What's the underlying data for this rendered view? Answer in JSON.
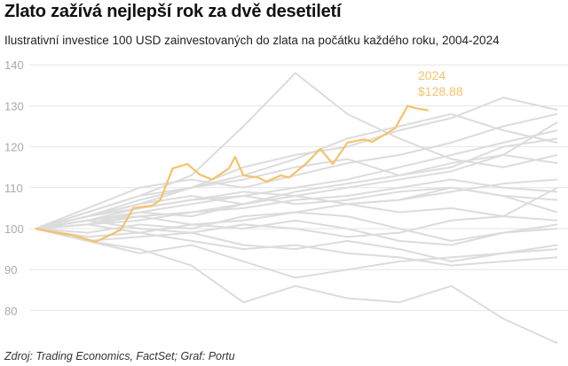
{
  "title": "Zlato zažívá nejlepší rok za dvě desetiletí",
  "subtitle": "Ilustrativní investice 100 USD zainvestovaných do zlata na počátku každého roku, 2004-2024",
  "source": "Zdroj: Trading Economics, FactSet; Graf: Portu",
  "colors": {
    "highlight": "#f5c26b",
    "background_series": "#dcdcdc",
    "grid": "#e6e6e6",
    "tick": "#aaaaaa"
  },
  "chart_data": {
    "type": "line",
    "title": "Zlato zažívá nejlepší rok za dvě desetiletí",
    "xlabel": "",
    "ylabel": "",
    "ylim": [
      70,
      142
    ],
    "yticks": [
      80,
      90,
      100,
      110,
      120,
      130,
      140
    ],
    "xlim": [
      0,
      251
    ],
    "grid": "horizontal",
    "legend": "none",
    "highlight": {
      "name": "2024",
      "value_label": "$128.88",
      "x": [
        0,
        10,
        17,
        29,
        41,
        47,
        56,
        60,
        66,
        73,
        79,
        85,
        93,
        96,
        100,
        107,
        111,
        118,
        122,
        130,
        137,
        143,
        150,
        158,
        162,
        173,
        179,
        183,
        189
      ],
      "y": [
        100,
        99,
        98.5,
        96.8,
        99.7,
        105,
        105.6,
        107,
        114.7,
        115.8,
        113.2,
        112,
        114.7,
        117.5,
        113,
        112.5,
        111.5,
        113,
        112.5,
        115.8,
        119.5,
        115.8,
        121,
        121.8,
        121.2,
        124.5,
        130,
        129.4,
        128.88
      ]
    },
    "background_series_x": [
      0,
      25,
      50,
      75,
      100,
      125,
      150,
      175,
      200,
      225,
      251
    ],
    "background_series": [
      [
        100,
        104,
        108,
        113,
        125,
        138,
        128,
        122,
        117,
        115,
        118
      ],
      [
        100,
        97,
        94,
        96,
        92,
        88,
        90,
        92,
        93,
        94,
        95
      ],
      [
        100,
        97,
        95,
        91,
        82,
        86,
        83,
        82,
        86,
        78,
        72
      ],
      [
        100,
        103,
        107,
        110,
        115,
        118,
        120,
        124,
        127,
        132,
        129
      ],
      [
        100,
        105,
        110,
        112,
        110,
        113,
        116,
        118,
        121,
        125,
        128
      ],
      [
        100,
        102,
        105,
        107,
        108,
        110,
        112,
        115,
        118,
        121,
        124
      ],
      [
        100,
        103,
        106,
        108,
        106,
        109,
        111,
        113,
        115,
        120,
        122
      ],
      [
        100,
        101,
        103,
        104,
        106,
        108,
        110,
        112,
        114,
        118,
        116
      ],
      [
        100,
        102,
        104,
        106,
        108,
        106,
        107,
        109,
        110,
        108,
        104
      ],
      [
        100,
        103,
        105,
        107,
        109,
        108,
        106,
        107,
        110,
        108,
        107
      ],
      [
        100,
        101,
        102,
        104,
        105,
        107,
        108,
        110,
        112,
        110,
        109
      ],
      [
        100,
        99,
        101,
        100,
        103,
        104,
        106,
        107,
        109,
        111,
        112
      ],
      [
        100,
        102,
        103,
        101,
        102,
        104,
        103,
        100,
        97,
        99,
        100
      ],
      [
        100,
        98,
        99,
        101,
        100,
        102,
        100,
        97,
        96,
        99,
        101
      ],
      [
        100,
        97,
        98,
        99,
        96,
        95,
        97,
        95,
        92,
        94,
        96
      ],
      [
        100,
        101,
        99,
        97,
        95,
        96,
        94,
        93,
        91,
        92,
        93
      ],
      [
        100,
        104,
        108,
        110,
        112,
        115,
        117,
        113,
        116,
        118,
        126
      ],
      [
        100,
        103,
        106,
        110,
        113,
        117,
        122,
        125,
        128,
        124,
        121
      ],
      [
        100,
        102,
        100,
        99,
        101,
        100,
        98,
        99,
        102,
        103,
        102
      ],
      [
        100,
        101,
        104,
        103,
        106,
        108,
        106,
        104,
        105,
        103,
        110
      ]
    ]
  }
}
